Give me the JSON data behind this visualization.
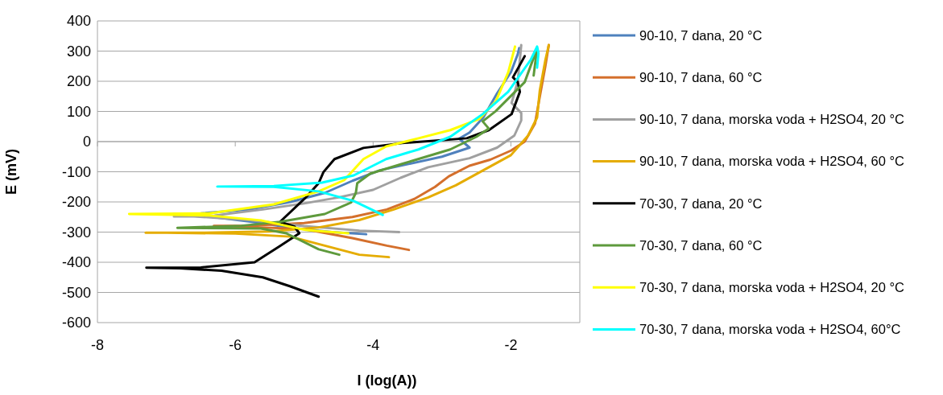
{
  "chart_data": {
    "type": "line",
    "xlabel": "I (log(A))",
    "ylabel": "E (mV)",
    "xlim": [
      -8,
      -1
    ],
    "xticks": [
      -8,
      -6,
      -4,
      -2
    ],
    "ylim": [
      -600,
      400
    ],
    "yticks": [
      -600,
      -500,
      -400,
      -300,
      -200,
      -100,
      0,
      100,
      200,
      300,
      400
    ],
    "grid": "y",
    "legend": "right",
    "marker": "none",
    "line_style": "solid",
    "series": [
      {
        "name": "90-10, 7 dana, 20 °C",
        "color": "#4f81bd",
        "x": [
          -4.1,
          -4.6,
          -5.2,
          -5.8,
          -6.5,
          -6.9,
          -6.5,
          -5.8,
          -5.2,
          -4.7,
          -4.3,
          -3.9,
          -3.5,
          -3.0,
          -2.6,
          -2.75,
          -2.6,
          -2.4,
          -2.2,
          -2.0,
          -1.9,
          -1.88
        ],
        "values": [
          -307,
          -300,
          -285,
          -265,
          -245,
          -240,
          -238,
          -225,
          -200,
          -170,
          -130,
          -95,
          -75,
          -50,
          -20,
          10,
          30,
          80,
          160,
          230,
          290,
          310
        ]
      },
      {
        "name": "90-10, 7 dana, 60 °C",
        "color": "#d46f2c",
        "x": [
          -3.48,
          -3.8,
          -4.3,
          -5.0,
          -5.8,
          -6.31,
          -5.8,
          -5.0,
          -4.3,
          -3.8,
          -3.4,
          -3.1,
          -2.9,
          -2.6,
          -2.3,
          -2.0,
          -1.8,
          -1.65,
          -1.58,
          -1.5,
          -1.45
        ],
        "values": [
          -359,
          -345,
          -320,
          -290,
          -283,
          -279,
          -279,
          -270,
          -250,
          -225,
          -190,
          -150,
          -115,
          -80,
          -60,
          -30,
          0,
          60,
          150,
          250,
          320
        ]
      },
      {
        "name": "90-10, 7 dana, morska voda + H2SO4, 20 °C",
        "color": "#a0a0a0",
        "x": [
          -3.62,
          -4.2,
          -5.0,
          -5.8,
          -6.6,
          -6.89,
          -6.3,
          -5.6,
          -5.0,
          -4.5,
          -4.0,
          -3.6,
          -3.2,
          -2.6,
          -2.2,
          -1.95,
          -1.85,
          -1.85,
          -1.99,
          -1.9,
          -1.85
        ],
        "values": [
          -300,
          -295,
          -280,
          -260,
          -248,
          -248,
          -245,
          -225,
          -205,
          -185,
          -160,
          -120,
          -85,
          -55,
          -20,
          20,
          70,
          95,
          128,
          200,
          320
        ]
      },
      {
        "name": "90-10, 7 dana, morska voda + H2SO4, 60 °C",
        "color": "#e5ac00",
        "x": [
          -3.77,
          -4.2,
          -4.7,
          -5.2,
          -6.0,
          -7.0,
          -7.3,
          -6.5,
          -5.5,
          -4.8,
          -4.2,
          -3.7,
          -3.2,
          -2.8,
          -2.4,
          -2.0,
          -1.75,
          -1.62,
          -1.58,
          -1.5,
          -1.45
        ],
        "values": [
          -383,
          -375,
          -345,
          -315,
          -305,
          -302,
          -302,
          -302,
          -298,
          -285,
          -260,
          -225,
          -185,
          -145,
          -95,
          -45,
          20,
          80,
          170,
          270,
          320
        ]
      },
      {
        "name": "70-30, 7 dana, 20 °C",
        "color": "#000000",
        "x": [
          -4.79,
          -5.2,
          -5.6,
          -6.2,
          -6.8,
          -7.29,
          -6.5,
          -5.72,
          -5.35,
          -5.07,
          -5.14,
          -5.35,
          -4.98,
          -4.79,
          -4.72,
          -4.56,
          -4.14,
          -3.58,
          -2.64,
          -2.32,
          -1.99,
          -1.87,
          -1.9,
          -1.97,
          -1.8
        ],
        "values": [
          -514,
          -480,
          -450,
          -428,
          -420,
          -418,
          -417,
          -400,
          -346,
          -304,
          -282,
          -266,
          -186,
          -138,
          -101,
          -58,
          -21,
          -5,
          11,
          38,
          91,
          165,
          197,
          213,
          283
        ]
      },
      {
        "name": "70-30, 7 dana, 60 °C",
        "color": "#5e9a3c",
        "x": [
          -4.49,
          -4.79,
          -5.26,
          -5.63,
          -6.84,
          -5.91,
          -5.35,
          -4.7,
          -4.32,
          -4.25,
          -4.23,
          -4.04,
          -3.58,
          -2.88,
          -2.5,
          -2.32,
          -2.41,
          -2.22,
          -1.8,
          -1.62,
          -1.67
        ],
        "values": [
          -375,
          -357,
          -304,
          -288,
          -286,
          -279,
          -266,
          -240,
          -202,
          -170,
          -138,
          -106,
          -74,
          -26,
          16,
          43,
          67,
          101,
          197,
          309,
          219
        ]
      },
      {
        "name": "70-30, 7 dana, morska voda + H2SO4, 20 °C",
        "color": "#ffff00",
        "x": [
          -4.36,
          -4.98,
          -5.63,
          -6.38,
          -7.54,
          -6.38,
          -5.44,
          -4.79,
          -4.42,
          -4.14,
          -3.81,
          -3.34,
          -2.88,
          -2.46,
          -2.22,
          -2.04,
          -1.94
        ],
        "values": [
          -304,
          -293,
          -261,
          -245,
          -240,
          -238,
          -208,
          -165,
          -128,
          -58,
          -16,
          11,
          38,
          75,
          133,
          229,
          315
        ]
      },
      {
        "name": "70-30, 7 dana, morska voda + H2SO4, 60°C",
        "color": "#00ffff",
        "x": [
          -3.86,
          -4.28,
          -4.79,
          -5.44,
          -6.26,
          -5.44,
          -4.74,
          -4.28,
          -3.81,
          -3.34,
          -2.88,
          -2.41,
          -2.04,
          -1.71,
          -1.62,
          -1.6,
          -1.62
        ],
        "values": [
          -243,
          -197,
          -165,
          -150,
          -149,
          -147,
          -136,
          -112,
          -58,
          -26,
          16,
          91,
          165,
          272,
          315,
          293,
          245
        ]
      }
    ]
  }
}
